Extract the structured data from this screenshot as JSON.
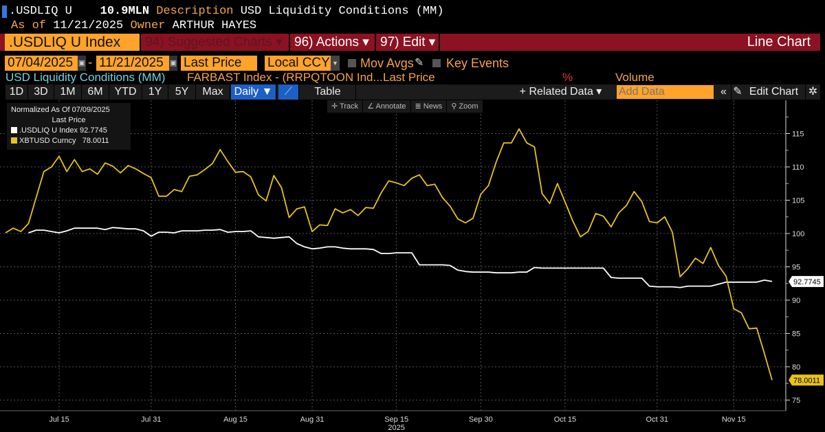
{
  "header": {
    "ticker": ".USDLIQ U",
    "value": "10.9MLN",
    "description_label": "Description",
    "description": "USD Liquidity Conditions (MM)",
    "asof_label": "As of",
    "asof": "11/21/2025",
    "owner_label": "Owner",
    "owner": "ARTHUR HAYES"
  },
  "menubar": {
    "security": ".USDLIQ U Index",
    "suggested": "94) Suggested Charts ▾",
    "actions": "96) Actions ▾",
    "edit": "97) Edit ▾",
    "chart_type": "Line Chart"
  },
  "controls": {
    "start_date": "07/04/2025",
    "dash": "-",
    "end_date": "11/21/2025",
    "field": "Last Price",
    "currency": "Local CCY",
    "mov_avgs": "Mov Avgs",
    "key_events": "Key Events"
  },
  "series_row": {
    "name": "USD Liquidity Conditions (MM)",
    "formula": "FARBAST Index - (RRPQTOON Ind...",
    "field": "Last Price",
    "pct": "%",
    "volume": "Volume"
  },
  "toolbar": {
    "periods": [
      "1D",
      "3D",
      "1M",
      "6M",
      "YTD",
      "1Y",
      "5Y",
      "Max"
    ],
    "frequency": "Daily ▼",
    "table": "Table",
    "related": "+ Related Data ▾",
    "add_data_placeholder": "Add Data",
    "collapse": "«",
    "edit_chart": "Edit Chart"
  },
  "chart_tools": [
    "✛ Track",
    "∠ Annotate",
    "≣ News",
    "⚲ Zoom"
  ],
  "legend": {
    "title": "Normalized As Of 07/09/2025",
    "subtitle": "Last Price",
    "items": [
      {
        "label": ".USDLIQ U Index",
        "value": "92.7745",
        "color": "#ffffff"
      },
      {
        "label": "XBTUSD Curncy",
        "value": "78.0011",
        "color": "#e8c31c"
      }
    ]
  },
  "chart_data": {
    "type": "line",
    "frequency": "business daily",
    "date_range": [
      "2025-07-04",
      "2025-11-21"
    ],
    "ylim": [
      73.4,
      120
    ],
    "y_ticks": [
      75,
      80,
      85,
      90,
      95,
      100,
      105,
      110,
      115
    ],
    "x_ticks": [
      {
        "label": "Jul 15",
        "date": "2025-07-15"
      },
      {
        "label": "Jul 31",
        "date": "2025-07-31"
      },
      {
        "label": "Aug 15",
        "date": "2025-08-15"
      },
      {
        "label": "Aug 31",
        "date": "2025-08-29"
      },
      {
        "label": "Sep 15",
        "date": "2025-09-15"
      },
      {
        "label": "Sep 30",
        "date": "2025-09-30"
      },
      {
        "label": "Oct 15",
        "date": "2025-10-15"
      },
      {
        "label": "Oct 31",
        "date": "2025-10-31"
      },
      {
        "label": "Nov 15",
        "date": "2025-11-14"
      }
    ],
    "x_year_label": "2025",
    "grid": true,
    "axis_side": "right",
    "legend_position": "top-left",
    "series": [
      {
        "name": ".USDLIQ U Index",
        "color": "#ffffff",
        "last_label": "92.7745",
        "values": [
          null,
          null,
          null,
          100.1,
          100.5,
          100.5,
          100.3,
          100.1,
          100.4,
          100.8,
          100.8,
          100.8,
          100.8,
          100.6,
          100.9,
          100.8,
          100.7,
          100.7,
          100.4,
          99.6,
          100.2,
          100.2,
          100.1,
          100.4,
          100.4,
          100.4,
          100.5,
          100.5,
          100.6,
          100.2,
          100.3,
          100.3,
          100.4,
          99.5,
          99.4,
          99.3,
          99.4,
          99.5,
          98.5,
          98.0,
          97.7,
          97.8,
          98.0,
          98.0,
          97.8,
          97.7,
          97.7,
          97.7,
          97.6,
          97.0,
          97.0,
          97.1,
          97.1,
          97.1,
          95.3,
          95.3,
          95.3,
          95.3,
          95.2,
          94.5,
          94.3,
          94.2,
          94.2,
          94.2,
          94.1,
          94.1,
          94.1,
          94.2,
          94.2,
          94.9,
          94.8,
          94.8,
          94.8,
          94.8,
          94.8,
          94.8,
          94.8,
          94.8,
          94.8,
          93.4,
          93.3,
          93.3,
          93.3,
          93.3,
          92.1,
          92.0,
          92.0,
          92.0,
          91.9,
          92.1,
          92.1,
          92.1,
          92.1,
          92.4,
          92.7,
          92.7,
          92.7,
          92.7,
          92.7,
          93.0,
          92.8
        ]
      },
      {
        "name": "XBTUSD Curncy",
        "color": "#e8c31c",
        "last_label": "78.0011",
        "values": [
          100.1,
          100.8,
          100.3,
          101.5,
          105.4,
          109.3,
          110.0,
          111.6,
          109.3,
          111.1,
          109.3,
          109.7,
          108.9,
          110.6,
          110.1,
          109.1,
          110.2,
          109.7,
          109.0,
          108.4,
          105.6,
          105.6,
          106.6,
          106.3,
          108.6,
          108.8,
          109.6,
          110.5,
          112.6,
          110.8,
          109.2,
          109.3,
          108.5,
          105.8,
          104.9,
          108.7,
          106.9,
          102.4,
          103.7,
          104.0,
          100.3,
          101.3,
          101.2,
          103.7,
          103.1,
          103.6,
          102.7,
          103.9,
          103.8,
          106.1,
          107.9,
          107.6,
          107.2,
          108.3,
          108.8,
          107.2,
          107.4,
          105.4,
          104.1,
          102.2,
          101.6,
          102.3,
          105.9,
          107.2,
          110.7,
          113.6,
          113.6,
          115.7,
          113.6,
          113.0,
          106.0,
          104.5,
          107.5,
          104.7,
          101.9,
          99.5,
          100.3,
          103.0,
          102.6,
          101.0,
          103.1,
          104.2,
          106.3,
          104.8,
          101.8,
          101.6,
          102.5,
          100.2,
          93.5,
          94.7,
          96.3,
          95.5,
          97.9,
          95.2,
          93.6,
          88.7,
          88.1,
          85.7,
          85.8,
          82.0,
          78.0
        ]
      }
    ]
  }
}
